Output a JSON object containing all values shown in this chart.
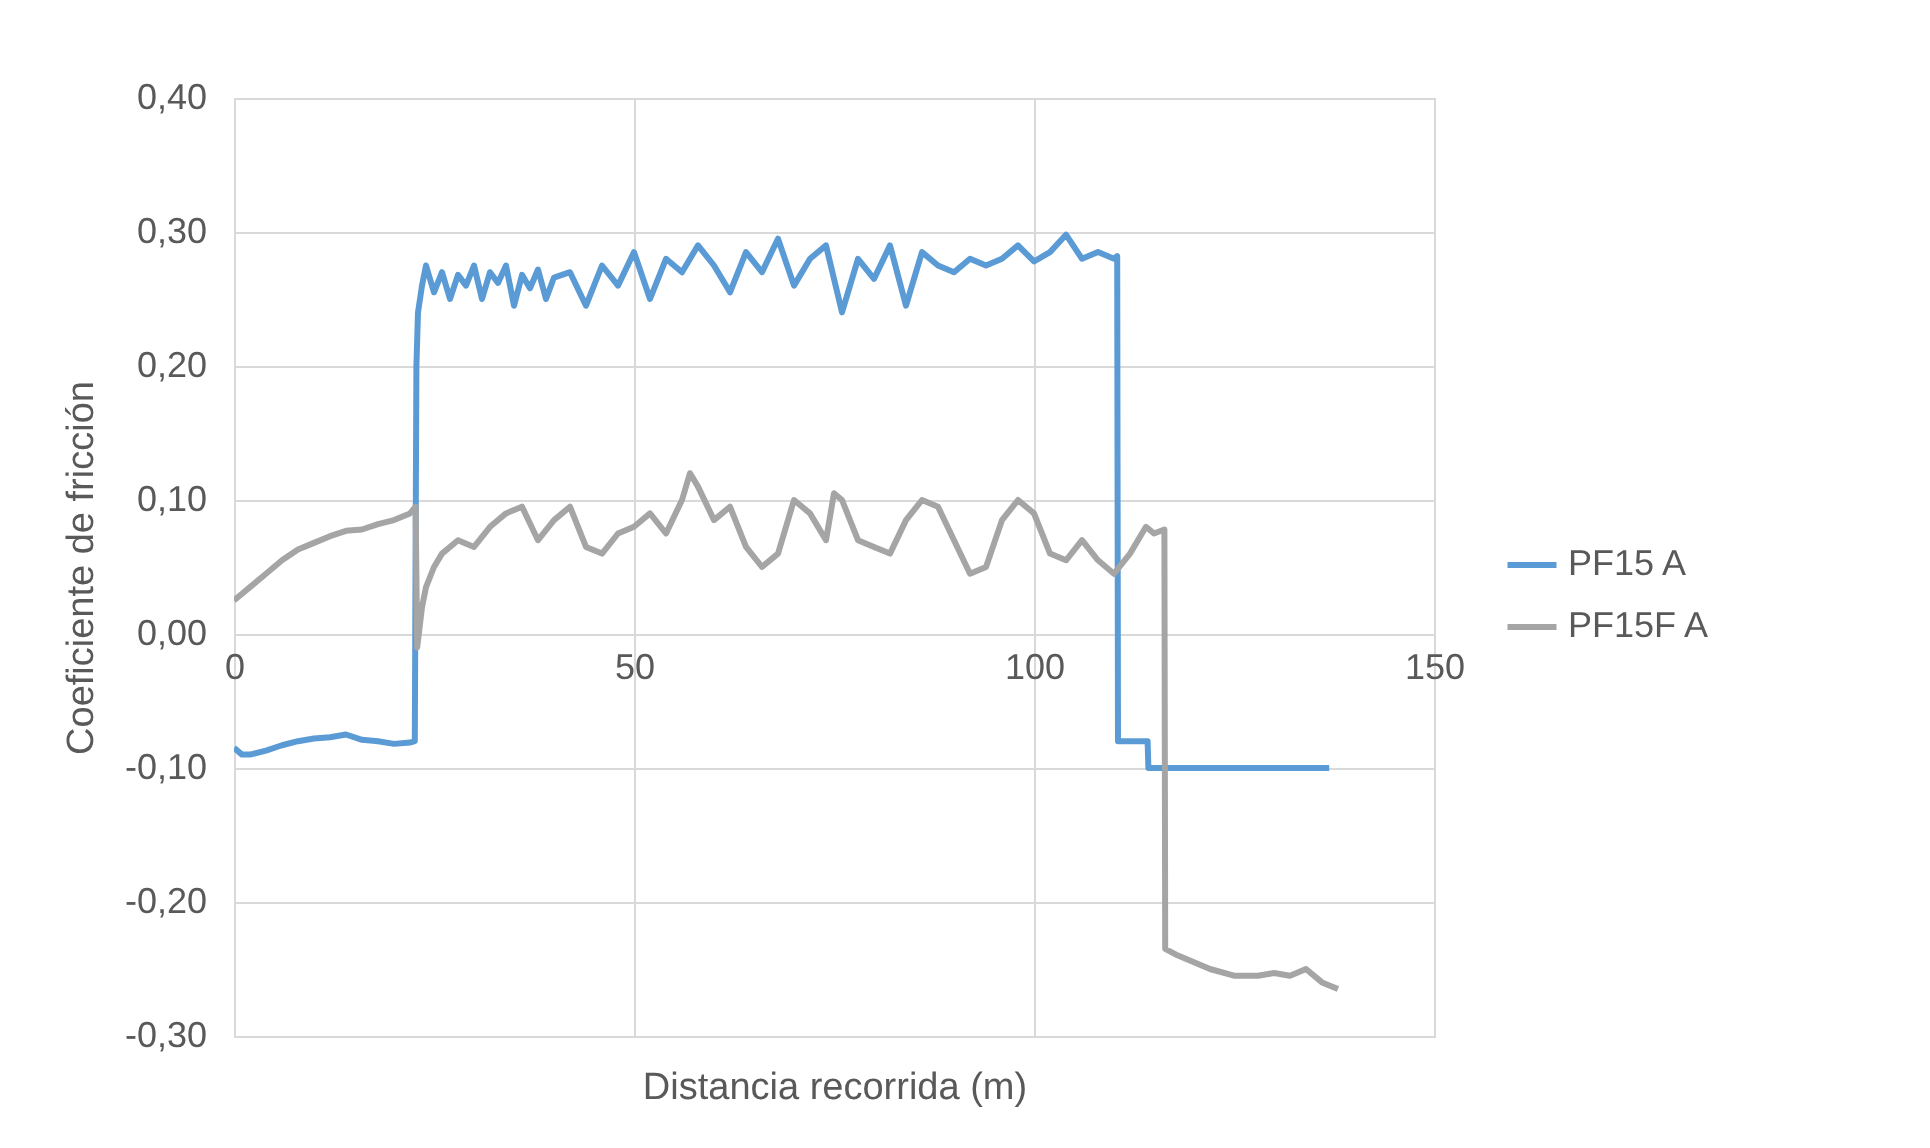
{
  "chart_data": {
    "type": "line",
    "xlabel": "Distancia recorrida (m)",
    "ylabel": "Coeficiente de fricción",
    "xlim": [
      0,
      150
    ],
    "xticks": [
      0,
      50,
      100,
      150
    ],
    "ylim": [
      -0.3,
      0.4
    ],
    "yticks": [
      {
        "value": 0.4,
        "label": "0,40"
      },
      {
        "value": 0.3,
        "label": "0,30"
      },
      {
        "value": 0.2,
        "label": "0,20"
      },
      {
        "value": 0.1,
        "label": "0,10"
      },
      {
        "value": 0,
        "label": "0,00"
      },
      {
        "value": -0.1,
        "label": "-0,10"
      },
      {
        "value": -0.2,
        "label": "-0,20"
      },
      {
        "value": -0.3,
        "label": "-0,30"
      }
    ],
    "grid": true,
    "legend": "right",
    "marker": "none",
    "line_style": "solid",
    "series": [
      {
        "name": "PF15 A",
        "color": "#5b9bd5",
        "x": [
          0,
          1,
          2,
          4,
          6,
          8,
          10,
          12,
          14,
          16,
          18,
          20,
          22,
          22.6,
          22.8,
          23,
          23.5,
          24,
          25,
          26,
          27,
          28,
          29,
          30,
          31,
          32,
          33,
          34,
          35,
          36,
          37,
          38,
          39,
          40,
          42,
          44,
          46,
          48,
          50,
          52,
          54,
          56,
          58,
          60,
          62,
          64,
          66,
          68,
          70,
          72,
          74,
          76,
          78,
          80,
          82,
          84,
          86,
          88,
          90,
          92,
          94,
          96,
          98,
          100,
          102,
          104,
          106,
          108,
          110,
          110.4,
          110.5,
          114.2,
          114.3,
          136.9
        ],
        "values": [
          -0.085,
          -0.09,
          -0.09,
          -0.087,
          -0.083,
          -0.08,
          -0.078,
          -0.077,
          -0.075,
          -0.079,
          -0.08,
          -0.082,
          -0.081,
          -0.08,
          0.2,
          0.24,
          0.26,
          0.275,
          0.255,
          0.27,
          0.25,
          0.268,
          0.26,
          0.275,
          0.25,
          0.27,
          0.262,
          0.275,
          0.245,
          0.268,
          0.258,
          0.272,
          0.25,
          0.266,
          0.27,
          0.245,
          0.275,
          0.26,
          0.285,
          0.25,
          0.28,
          0.27,
          0.29,
          0.275,
          0.255,
          0.285,
          0.27,
          0.295,
          0.26,
          0.28,
          0.29,
          0.24,
          0.28,
          0.265,
          0.29,
          0.245,
          0.285,
          0.275,
          0.27,
          0.28,
          0.275,
          0.28,
          0.29,
          0.278,
          0.285,
          0.298,
          0.28,
          0.285,
          0.28,
          0.282,
          -0.08,
          -0.08,
          -0.1,
          -0.1
        ]
      },
      {
        "name": "PF15F A",
        "color": "#a5a5a5",
        "x": [
          0,
          1,
          2,
          4,
          6,
          8,
          10,
          12,
          14,
          16,
          18,
          20,
          22,
          22.7,
          22.9,
          23.5,
          24,
          25,
          26,
          28,
          30,
          32,
          34,
          36,
          38,
          40,
          42,
          44,
          46,
          48,
          50,
          52,
          54,
          56,
          57,
          58,
          60,
          62,
          64,
          66,
          68,
          70,
          72,
          74,
          75,
          76,
          78,
          80,
          82,
          84,
          86,
          88,
          90,
          92,
          94,
          96,
          98,
          100,
          102,
          104,
          106,
          108,
          110,
          112,
          114,
          115,
          116.3,
          116.4,
          118,
          120,
          122,
          125,
          128,
          130,
          132,
          134,
          136,
          138
        ],
        "values": [
          0.025,
          0.03,
          0.035,
          0.045,
          0.055,
          0.063,
          0.068,
          0.073,
          0.077,
          0.078,
          0.082,
          0.085,
          0.09,
          0.095,
          -0.01,
          0.02,
          0.035,
          0.05,
          0.06,
          0.07,
          0.065,
          0.08,
          0.09,
          0.095,
          0.07,
          0.085,
          0.095,
          0.065,
          0.06,
          0.075,
          0.08,
          0.09,
          0.075,
          0.1,
          0.12,
          0.11,
          0.085,
          0.095,
          0.065,
          0.05,
          0.06,
          0.1,
          0.09,
          0.07,
          0.105,
          0.1,
          0.07,
          0.065,
          0.06,
          0.085,
          0.1,
          0.095,
          0.07,
          0.045,
          0.05,
          0.085,
          0.1,
          0.09,
          0.06,
          0.055,
          0.07,
          0.055,
          0.045,
          0.06,
          0.08,
          0.075,
          0.078,
          -0.235,
          -0.24,
          -0.245,
          -0.25,
          -0.255,
          -0.255,
          -0.253,
          -0.255,
          -0.25,
          -0.26,
          -0.265
        ]
      }
    ]
  }
}
